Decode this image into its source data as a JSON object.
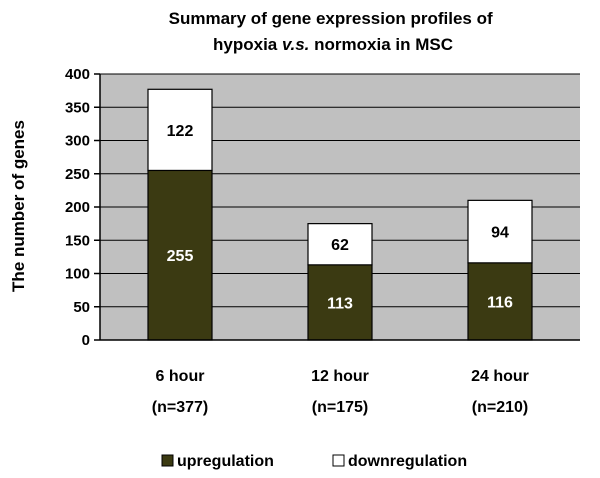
{
  "chart_data": {
    "type": "bar",
    "stacked": true,
    "title_parts": [
      {
        "text": "Summary of gene expression profiles of",
        "italic": false
      },
      {
        "text": "hypoxia ",
        "italic": false
      },
      {
        "text": "v.s.",
        "italic": true
      },
      {
        "text": " normoxia in MSC",
        "italic": false
      }
    ],
    "categories": [
      "6 hour",
      "12 hour",
      "24 hour"
    ],
    "category_sublabels": [
      "(n=377)",
      "(n=175)",
      "(n=210)"
    ],
    "series": [
      {
        "name": "upregulation",
        "values": [
          255,
          113,
          116
        ],
        "color": "#3b3a12",
        "label_color": "#ffffff"
      },
      {
        "name": "downregulation",
        "values": [
          122,
          62,
          94
        ],
        "color": "#ffffff",
        "label_color": "#000000"
      }
    ],
    "ylabel": "The number of genes",
    "xlabel": "",
    "ylim": [
      0,
      400
    ],
    "yticks": [
      0,
      50,
      100,
      150,
      200,
      250,
      300,
      350,
      400
    ],
    "grid": true,
    "legend_position": "bottom",
    "colors": {
      "plot_background": "#c0c0c0",
      "gridline": "#000000",
      "bar_outline": "#000000"
    }
  }
}
